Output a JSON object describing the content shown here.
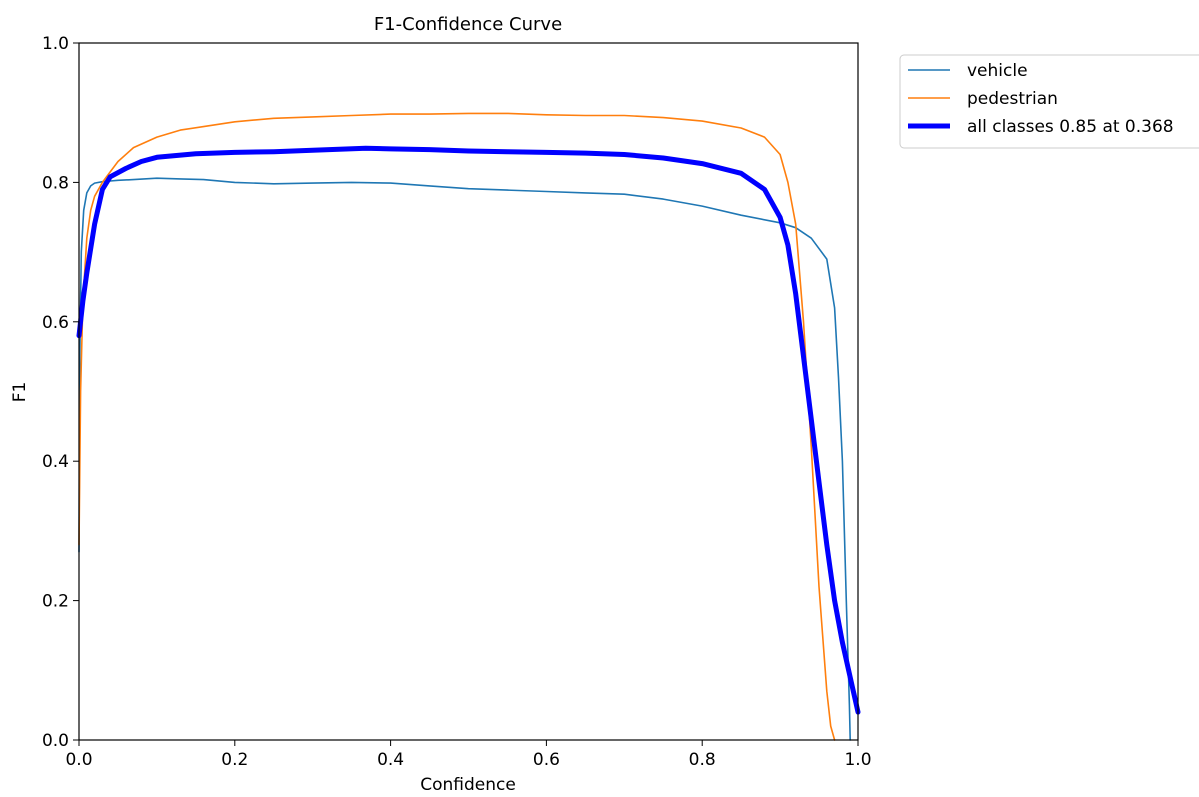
{
  "chart_data": {
    "type": "line",
    "title": "F1-Confidence Curve",
    "xlabel": "Confidence",
    "ylabel": "F1",
    "xlim": [
      0.0,
      1.0
    ],
    "ylim": [
      0.0,
      1.0
    ],
    "xticks": [
      "0.0",
      "0.2",
      "0.4",
      "0.6",
      "0.8",
      "1.0"
    ],
    "yticks": [
      "0.0",
      "0.2",
      "0.4",
      "0.6",
      "0.8",
      "1.0"
    ],
    "grid": false,
    "legend_position": "outside-top-right",
    "series": [
      {
        "name": "vehicle",
        "color": "#1f77b4",
        "points": [
          [
            0.0,
            0.27
          ],
          [
            0.001,
            0.55
          ],
          [
            0.003,
            0.7
          ],
          [
            0.006,
            0.76
          ],
          [
            0.01,
            0.785
          ],
          [
            0.015,
            0.795
          ],
          [
            0.02,
            0.799
          ],
          [
            0.03,
            0.801
          ],
          [
            0.04,
            0.802
          ],
          [
            0.05,
            0.803
          ],
          [
            0.07,
            0.804
          ],
          [
            0.1,
            0.806
          ],
          [
            0.13,
            0.805
          ],
          [
            0.16,
            0.804
          ],
          [
            0.2,
            0.8
          ],
          [
            0.25,
            0.798
          ],
          [
            0.3,
            0.799
          ],
          [
            0.35,
            0.8
          ],
          [
            0.4,
            0.799
          ],
          [
            0.45,
            0.795
          ],
          [
            0.5,
            0.791
          ],
          [
            0.55,
            0.789
          ],
          [
            0.6,
            0.787
          ],
          [
            0.65,
            0.785
          ],
          [
            0.7,
            0.783
          ],
          [
            0.75,
            0.776
          ],
          [
            0.8,
            0.766
          ],
          [
            0.85,
            0.753
          ],
          [
            0.9,
            0.742
          ],
          [
            0.92,
            0.735
          ],
          [
            0.94,
            0.72
          ],
          [
            0.96,
            0.69
          ],
          [
            0.97,
            0.62
          ],
          [
            0.975,
            0.52
          ],
          [
            0.98,
            0.4
          ],
          [
            0.985,
            0.2
          ],
          [
            0.989,
            0.05
          ],
          [
            0.99,
            0.0
          ]
        ]
      },
      {
        "name": "pedestrian",
        "color": "#ff7f0e",
        "points": [
          [
            0.0,
            0.28
          ],
          [
            0.002,
            0.5
          ],
          [
            0.005,
            0.63
          ],
          [
            0.01,
            0.72
          ],
          [
            0.015,
            0.76
          ],
          [
            0.02,
            0.78
          ],
          [
            0.03,
            0.8
          ],
          [
            0.04,
            0.815
          ],
          [
            0.05,
            0.83
          ],
          [
            0.07,
            0.85
          ],
          [
            0.1,
            0.865
          ],
          [
            0.13,
            0.875
          ],
          [
            0.16,
            0.88
          ],
          [
            0.2,
            0.887
          ],
          [
            0.25,
            0.892
          ],
          [
            0.3,
            0.894
          ],
          [
            0.35,
            0.896
          ],
          [
            0.4,
            0.898
          ],
          [
            0.45,
            0.898
          ],
          [
            0.5,
            0.899
          ],
          [
            0.55,
            0.899
          ],
          [
            0.6,
            0.897
          ],
          [
            0.65,
            0.896
          ],
          [
            0.7,
            0.896
          ],
          [
            0.75,
            0.893
          ],
          [
            0.8,
            0.888
          ],
          [
            0.85,
            0.878
          ],
          [
            0.88,
            0.865
          ],
          [
            0.9,
            0.84
          ],
          [
            0.91,
            0.8
          ],
          [
            0.92,
            0.74
          ],
          [
            0.93,
            0.6
          ],
          [
            0.94,
            0.42
          ],
          [
            0.95,
            0.22
          ],
          [
            0.96,
            0.07
          ],
          [
            0.965,
            0.02
          ],
          [
            0.97,
            0.0
          ]
        ]
      },
      {
        "name": "all classes 0.85 at 0.368",
        "color": "#0000ff",
        "points": [
          [
            0.0,
            0.58
          ],
          [
            0.005,
            0.63
          ],
          [
            0.01,
            0.67
          ],
          [
            0.02,
            0.74
          ],
          [
            0.03,
            0.79
          ],
          [
            0.04,
            0.808
          ],
          [
            0.06,
            0.82
          ],
          [
            0.08,
            0.83
          ],
          [
            0.1,
            0.836
          ],
          [
            0.15,
            0.841
          ],
          [
            0.2,
            0.843
          ],
          [
            0.25,
            0.844
          ],
          [
            0.3,
            0.846
          ],
          [
            0.368,
            0.849
          ],
          [
            0.4,
            0.848
          ],
          [
            0.45,
            0.847
          ],
          [
            0.5,
            0.845
          ],
          [
            0.55,
            0.844
          ],
          [
            0.6,
            0.843
          ],
          [
            0.65,
            0.842
          ],
          [
            0.7,
            0.84
          ],
          [
            0.75,
            0.835
          ],
          [
            0.8,
            0.827
          ],
          [
            0.85,
            0.813
          ],
          [
            0.88,
            0.79
          ],
          [
            0.9,
            0.75
          ],
          [
            0.91,
            0.71
          ],
          [
            0.92,
            0.64
          ],
          [
            0.93,
            0.55
          ],
          [
            0.94,
            0.46
          ],
          [
            0.95,
            0.37
          ],
          [
            0.96,
            0.28
          ],
          [
            0.97,
            0.2
          ],
          [
            0.98,
            0.14
          ],
          [
            0.99,
            0.09
          ],
          [
            1.0,
            0.04
          ]
        ]
      }
    ]
  }
}
